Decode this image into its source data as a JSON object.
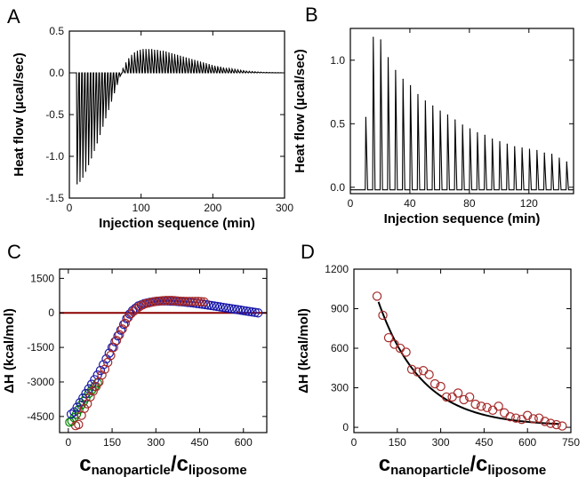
{
  "chart_data": [
    {
      "panel": "A",
      "type": "line",
      "xlabel": "Injection sequence (min)",
      "ylabel": "Heat flow (µcal/sec)",
      "xlim": [
        0,
        300
      ],
      "ylim": [
        -1.5,
        0.5
      ],
      "xticks": [
        0,
        100,
        200,
        300
      ],
      "yticks": [
        -1.5,
        -1.0,
        -0.5,
        0.0,
        0.5
      ],
      "ytick_labels": [
        "-1.5",
        "-1.0",
        "-0.5",
        "0.0",
        "0.5"
      ],
      "injection_times": [
        10,
        14,
        18,
        22,
        26,
        30,
        34,
        38,
        42,
        46,
        50,
        54,
        58,
        62,
        66,
        70,
        74,
        78,
        82,
        86,
        90,
        94,
        98,
        102,
        106,
        110,
        114,
        118,
        122,
        126,
        130,
        134,
        138,
        142,
        146,
        150,
        154,
        158,
        162,
        166,
        170,
        174,
        178,
        182,
        186,
        190,
        194,
        198,
        202,
        206,
        210,
        214,
        218,
        222,
        226,
        230,
        234,
        238,
        242,
        246,
        250,
        254,
        258,
        262,
        266,
        270,
        274,
        278,
        282,
        286,
        290,
        294
      ],
      "peak_heights": [
        -1.33,
        -1.3,
        -1.25,
        -1.18,
        -1.1,
        -1.02,
        -0.93,
        -0.84,
        -0.74,
        -0.64,
        -0.54,
        -0.44,
        -0.34,
        -0.24,
        -0.14,
        -0.04,
        0.05,
        0.12,
        0.17,
        0.21,
        0.24,
        0.26,
        0.27,
        0.28,
        0.28,
        0.28,
        0.28,
        0.27,
        0.27,
        0.26,
        0.26,
        0.25,
        0.24,
        0.23,
        0.22,
        0.21,
        0.2,
        0.19,
        0.18,
        0.17,
        0.16,
        0.15,
        0.14,
        0.13,
        0.12,
        0.11,
        0.1,
        0.09,
        0.08,
        0.075,
        0.07,
        0.06,
        0.055,
        0.05,
        0.045,
        0.04,
        0.035,
        0.03,
        0.025,
        0.02,
        0.018,
        0.015,
        0.012,
        0.01,
        0.008,
        0.006,
        0.005,
        0.004,
        0.003,
        0.002,
        0.002,
        0.001
      ],
      "baseline": 0.0,
      "color": "#000000"
    },
    {
      "panel": "B",
      "type": "line",
      "xlabel": "Injection sequence (min)",
      "ylabel": "Heat flow (µcal/sec)",
      "xlim": [
        0,
        150
      ],
      "ylim": [
        -0.05,
        1.25
      ],
      "xticks": [
        0,
        40,
        80,
        120
      ],
      "yticks": [
        0.0,
        0.5,
        1.0
      ],
      "ytick_labels": [
        "0.0",
        "0.5",
        "1.0"
      ],
      "injection_times": [
        10,
        15,
        20,
        25,
        30,
        35,
        40,
        45,
        50,
        55,
        60,
        65,
        70,
        75,
        80,
        85,
        90,
        95,
        100,
        105,
        110,
        115,
        120,
        125,
        130,
        135,
        140,
        145
      ],
      "peak_heights": [
        0.55,
        1.18,
        1.16,
        1.02,
        0.92,
        0.85,
        0.8,
        0.73,
        0.68,
        0.64,
        0.6,
        0.57,
        0.53,
        0.49,
        0.46,
        0.43,
        0.41,
        0.38,
        0.36,
        0.34,
        0.32,
        0.31,
        0.3,
        0.29,
        0.27,
        0.26,
        0.23,
        0.2
      ],
      "baseline": -0.02,
      "color": "#000000"
    },
    {
      "panel": "C",
      "type": "scatter",
      "xlabel_main": "c",
      "xlabel_sub1": "nanoparticle",
      "xlabel_sep": "/c",
      "xlabel_sub2": "liposome",
      "ylabel": "ΔH (kcal/mol)",
      "xlim": [
        -30,
        680
      ],
      "ylim": [
        -5200,
        1900
      ],
      "xticks": [
        0,
        150,
        300,
        450,
        600
      ],
      "yticks": [
        -4500,
        -3000,
        -1500,
        0,
        1500
      ],
      "series": [
        {
          "color": "#008000",
          "x": [
            5,
            12,
            20,
            28,
            36,
            44,
            52,
            60,
            70,
            80,
            90,
            100
          ],
          "y": [
            -4750,
            -4700,
            -4550,
            -4400,
            -4200,
            -4000,
            -3850,
            -3700,
            -3500,
            -3350,
            -3200,
            -3050
          ]
        },
        {
          "color": "#1a1aaa",
          "x": [
            10,
            20,
            30,
            40,
            50,
            60,
            70,
            80,
            90,
            100,
            110,
            120,
            130,
            140,
            150,
            160,
            170,
            180,
            190,
            200,
            210,
            220,
            230,
            240,
            250,
            260,
            270,
            280,
            290,
            300,
            310,
            320,
            330,
            340,
            350,
            360,
            370,
            380,
            390,
            400,
            410,
            420,
            430,
            440,
            450,
            460,
            470,
            480,
            490,
            500,
            510,
            520,
            530,
            540,
            550,
            560,
            570,
            580,
            590,
            600,
            610,
            620,
            630,
            640,
            650
          ],
          "y": [
            -4400,
            -4300,
            -4100,
            -3900,
            -3700,
            -3500,
            -3300,
            -3100,
            -2900,
            -2700,
            -2500,
            -2250,
            -2000,
            -1750,
            -1500,
            -1250,
            -1000,
            -750,
            -500,
            -250,
            -50,
            100,
            200,
            300,
            350,
            400,
            430,
            460,
            480,
            500,
            510,
            520,
            520,
            520,
            515,
            510,
            500,
            490,
            480,
            470,
            455,
            440,
            425,
            410,
            395,
            380,
            360,
            340,
            320,
            300,
            280,
            260,
            240,
            220,
            200,
            180,
            160,
            140,
            120,
            100,
            80,
            60,
            40,
            20,
            0
          ]
        },
        {
          "color": "#a52a2a",
          "x": [
            25,
            35,
            45,
            55,
            65,
            75,
            85,
            95,
            105,
            115,
            125,
            135,
            145,
            155,
            165,
            175,
            185,
            195,
            205,
            215,
            225,
            235,
            245,
            255,
            265,
            275,
            285,
            295,
            305,
            315,
            325,
            335,
            345,
            355,
            365,
            375,
            385,
            395,
            405,
            415,
            425,
            435,
            445,
            455,
            465
          ],
          "y": [
            -4900,
            -4850,
            -4450,
            -4150,
            -3950,
            -3650,
            -3400,
            -3200,
            -3000,
            -2700,
            -2450,
            -2150,
            -1850,
            -1500,
            -1200,
            -950,
            -700,
            -450,
            -200,
            -30,
            80,
            190,
            280,
            350,
            400,
            430,
            460,
            490,
            510,
            520,
            530,
            540,
            540,
            540,
            530,
            520,
            510,
            505,
            500,
            500,
            500,
            500,
            500,
            490,
            480
          ]
        }
      ],
      "fit_line": {
        "color": "#8b0000",
        "x": [
          -30,
          680
        ],
        "y": [
          0,
          0
        ]
      }
    },
    {
      "panel": "D",
      "type": "scatter",
      "xlabel_main": "c",
      "xlabel_sub1": "nanoparticle",
      "xlabel_sep": "/c",
      "xlabel_sub2": "liposome",
      "ylabel": "ΔH (kcal/mol)",
      "xlim": [
        0,
        750
      ],
      "ylim": [
        -40,
        1200
      ],
      "xticks": [
        0,
        150,
        300,
        450,
        600,
        750
      ],
      "yticks": [
        0,
        300,
        600,
        900,
        1200
      ],
      "series": [
        {
          "color": "#a52a2a",
          "x": [
            80,
            100,
            120,
            140,
            160,
            180,
            200,
            220,
            240,
            260,
            280,
            300,
            320,
            340,
            360,
            380,
            400,
            420,
            440,
            460,
            480,
            500,
            520,
            540,
            560,
            580,
            600,
            620,
            640,
            660,
            680,
            700,
            720
          ],
          "y": [
            995,
            850,
            680,
            630,
            600,
            570,
            440,
            420,
            430,
            400,
            330,
            310,
            230,
            230,
            260,
            210,
            230,
            175,
            160,
            150,
            130,
            160,
            110,
            80,
            70,
            60,
            90,
            65,
            70,
            45,
            30,
            20,
            10
          ]
        }
      ],
      "fit_curve": {
        "color": "#000000",
        "a": 1650,
        "b": 0.0066,
        "c": 10,
        "x_from": 85,
        "x_to": 710
      }
    }
  ],
  "panel_labels": [
    "A",
    "B",
    "C",
    "D"
  ]
}
